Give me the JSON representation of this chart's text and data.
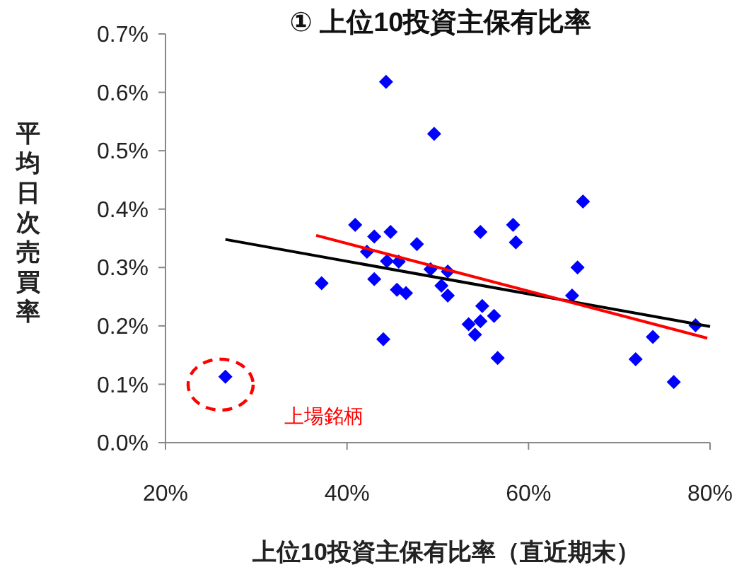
{
  "chart_data": {
    "type": "scatter",
    "title": "① 上位10投資主保有比率",
    "xlabel": "上位10投資主保有比率（直近期末）",
    "ylabel": "平均日次売買率",
    "xlim": [
      20,
      80
    ],
    "xticks": [
      {
        "value": 20,
        "label": "20%"
      },
      {
        "value": 40,
        "label": "40%"
      },
      {
        "value": 60,
        "label": "60%"
      },
      {
        "value": 80,
        "label": "80%"
      }
    ],
    "ylim": [
      0,
      0.7
    ],
    "yticks": [
      {
        "value": 0,
        "label": "0.0%"
      },
      {
        "value": 0.1,
        "label": "0.1%"
      },
      {
        "value": 0.2,
        "label": "0.2%"
      },
      {
        "value": 0.3,
        "label": "0.3%"
      },
      {
        "value": 0.4,
        "label": "0.4%"
      },
      {
        "value": 0.5,
        "label": "0.5%"
      },
      {
        "value": 0.6,
        "label": "0.6%"
      },
      {
        "value": 0.7,
        "label": "0.7%"
      }
    ],
    "grid": false,
    "marker": "diamond",
    "annotations": [
      "上場銘柄"
    ],
    "series": [
      {
        "color": "#0000ff",
        "x": [
          26.6,
          37.2,
          40.9,
          42.2,
          43.0,
          43.0,
          44.3,
          44.0,
          44.8,
          44.4,
          45.7,
          45.5,
          46.5,
          47.7,
          49.2,
          49.6,
          51.1,
          50.4,
          51.1,
          53.4,
          54.1,
          54.7,
          54.7,
          54.9,
          56.2,
          56.6,
          58.3,
          58.6,
          64.8,
          65.4,
          66.0,
          71.8,
          73.7,
          76.0,
          78.4
        ],
        "values": [
          0.113,
          0.273,
          0.373,
          0.327,
          0.353,
          0.28,
          0.618,
          0.177,
          0.361,
          0.311,
          0.31,
          0.262,
          0.256,
          0.34,
          0.297,
          0.529,
          0.293,
          0.269,
          0.252,
          0.203,
          0.185,
          0.208,
          0.361,
          0.234,
          0.217,
          0.145,
          0.373,
          0.343,
          0.252,
          0.3,
          0.413,
          0.143,
          0.181,
          0.104,
          0.201
        ]
      },
      {
        "type": "line",
        "color": "#000000",
        "marker": "none",
        "x": [
          26.6,
          80
        ],
        "values": [
          0.348,
          0.199
        ]
      },
      {
        "type": "line",
        "color": "#ff0000",
        "marker": "none",
        "x": [
          36.6,
          79.7
        ],
        "values": [
          0.355,
          0.179
        ]
      }
    ]
  }
}
